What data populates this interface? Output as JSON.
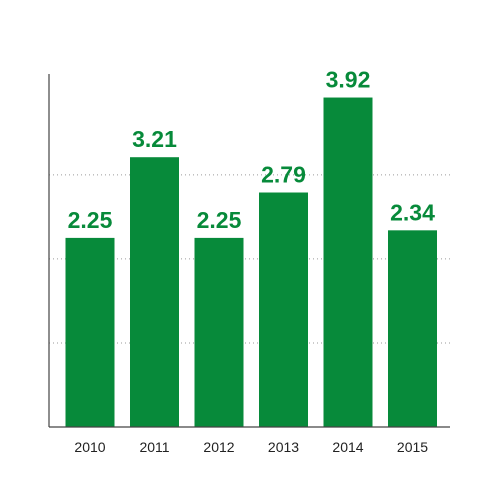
{
  "chart_data": {
    "type": "bar",
    "categories": [
      "2010",
      "2011",
      "2012",
      "2013",
      "2014",
      "2015"
    ],
    "values": [
      2.25,
      3.21,
      2.25,
      2.79,
      3.92,
      2.34
    ],
    "value_labels": [
      "2.25",
      "3.21",
      "2.25",
      "2.79",
      "3.92",
      "2.34"
    ],
    "title": "",
    "xlabel": "",
    "ylabel": "",
    "ylim": [
      0,
      4.2
    ],
    "gridlines": [
      1,
      2,
      3
    ],
    "grid": true,
    "legend": "none",
    "colors": {
      "bar": "#078a3a",
      "value_label": "#078a3a",
      "tick_label": "#222222",
      "grid": "#9a9a9a",
      "axis": "#444444"
    }
  }
}
